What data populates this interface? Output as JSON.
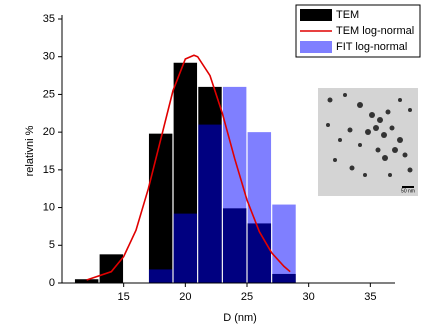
{
  "chart_data": {
    "type": "bar",
    "x_label": "D (nm)",
    "y_label": "relativni %",
    "xlim": [
      10,
      37
    ],
    "xticks": [
      15,
      20,
      25,
      30,
      35
    ],
    "ylim": [
      0,
      35
    ],
    "yticks": [
      0,
      5,
      10,
      15,
      20,
      25,
      30,
      35
    ],
    "legend": "top-right",
    "inset_label": "50 nm",
    "x": [
      12,
      14,
      18,
      20,
      22,
      24,
      26,
      28
    ],
    "series": [
      {
        "name": "TEM",
        "type": "bar",
        "color": "#000000",
        "values": [
          0.5,
          3.8,
          19.8,
          29.2,
          26,
          9.9,
          7.9,
          1.2
        ]
      },
      {
        "name": "TEM log-normal",
        "type": "line",
        "color": "#e00000",
        "x": [
          12,
          14,
          15,
          16,
          17,
          18,
          19,
          20,
          20.7,
          21,
          22,
          23,
          24,
          25,
          26,
          27,
          28,
          28.5
        ],
        "values": [
          0.4,
          1.5,
          3.5,
          7,
          12.5,
          19,
          25.5,
          29.7,
          30.2,
          30,
          27.5,
          22.5,
          16.5,
          11,
          6.8,
          4,
          2.2,
          1.5
        ]
      },
      {
        "name": "FIT log-normal",
        "type": "bar",
        "color": "#0000ff",
        "opacity": 0.5,
        "values": [
          0,
          0,
          1.8,
          9.2,
          21,
          26,
          20,
          10.4
        ]
      }
    ]
  }
}
